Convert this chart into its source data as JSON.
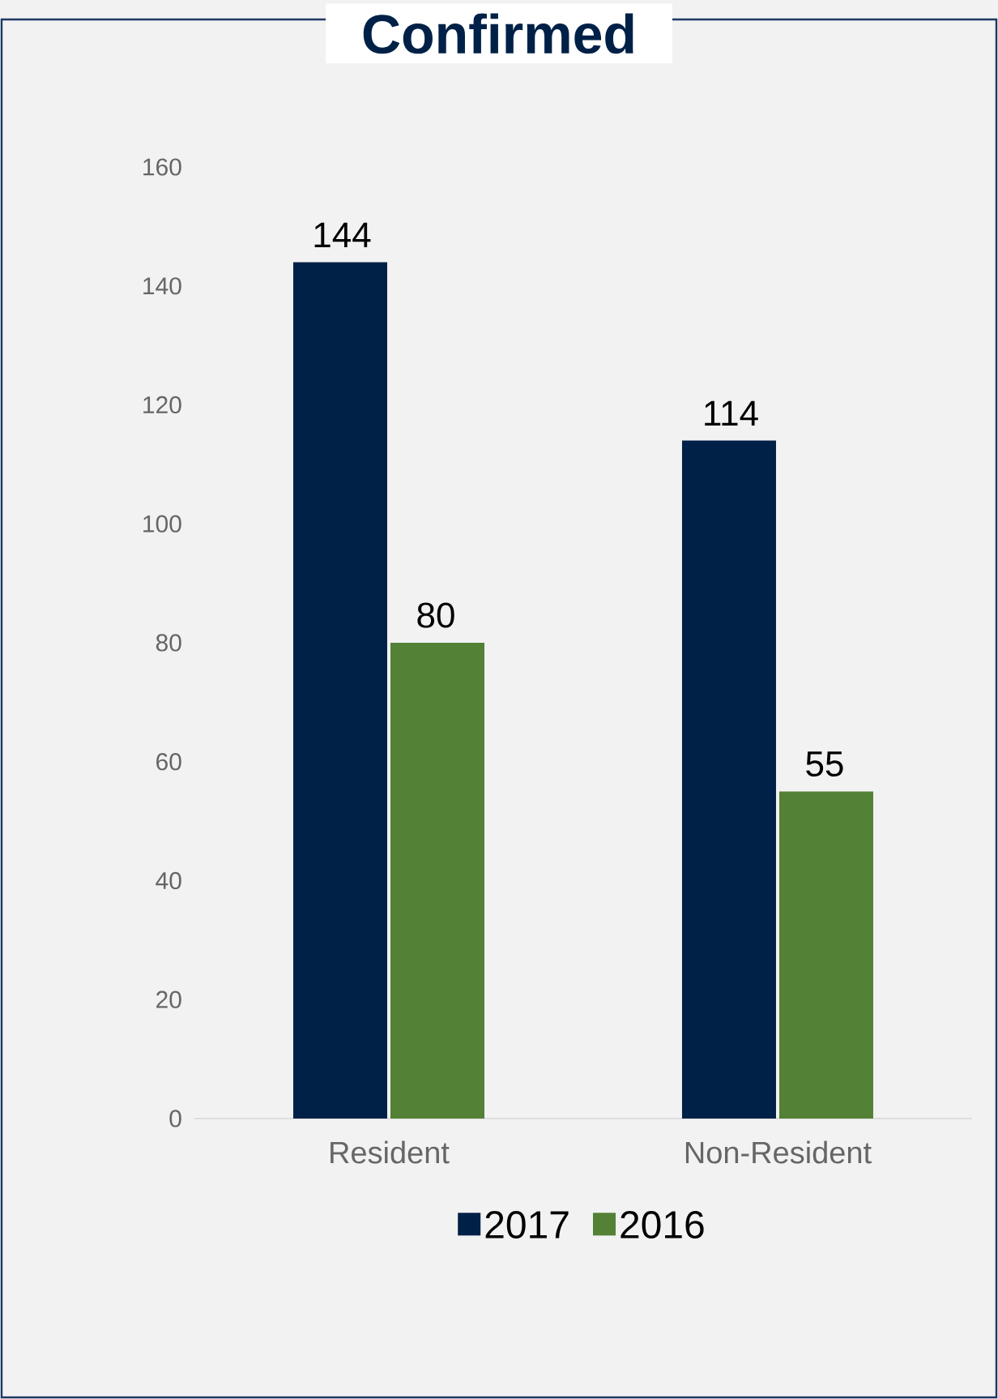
{
  "chart_data": {
    "type": "bar",
    "title": "Confirmed",
    "categories": [
      "Resident",
      "Non-Resident"
    ],
    "series": [
      {
        "name": "2017",
        "color": "#002147",
        "values": [
          144,
          114
        ]
      },
      {
        "name": "2016",
        "color": "#538135",
        "values": [
          80,
          55
        ]
      }
    ],
    "ylim": [
      0,
      160
    ],
    "yticks": [
      0,
      20,
      40,
      60,
      80,
      100,
      120,
      140,
      160
    ],
    "data_labels": true,
    "legend": "bottom"
  }
}
